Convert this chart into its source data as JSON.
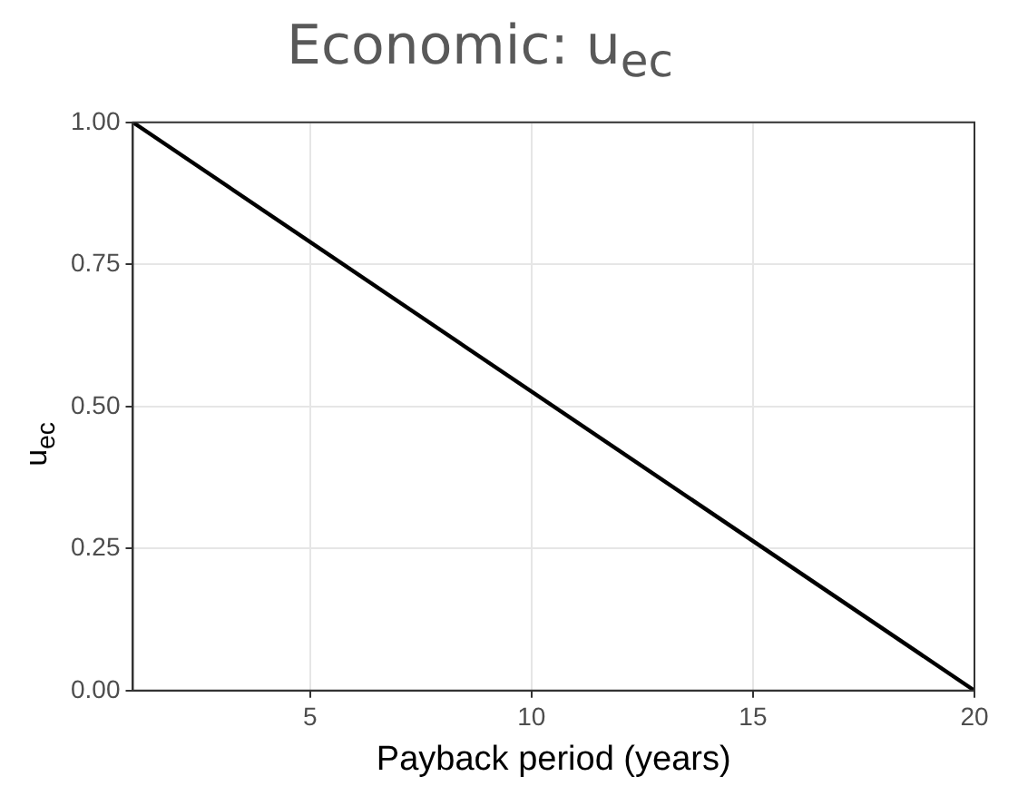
{
  "chart_data": {
    "type": "line",
    "title": "Economic: u$_{ec}$",
    "xlabel": "Payback period (years)",
    "ylabel": "u$_{ec}$",
    "x": [
      1,
      20
    ],
    "series": [
      {
        "color": "#000000",
        "values": [
          1,
          0
        ]
      }
    ],
    "xlim": [
      1,
      20
    ],
    "xticks": [
      5,
      10,
      15,
      20
    ],
    "ylim": [
      0,
      1
    ],
    "yticks": [
      {
        "value": 0,
        "label": "0.00"
      },
      {
        "value": 0.25,
        "label": "0.25"
      },
      {
        "value": 0.5,
        "label": "0.50"
      },
      {
        "value": 0.75,
        "label": "0.75"
      },
      {
        "value": 1,
        "label": "1.00"
      }
    ],
    "grid": true,
    "marker": "none",
    "line_style": "solid",
    "legend": false
  }
}
